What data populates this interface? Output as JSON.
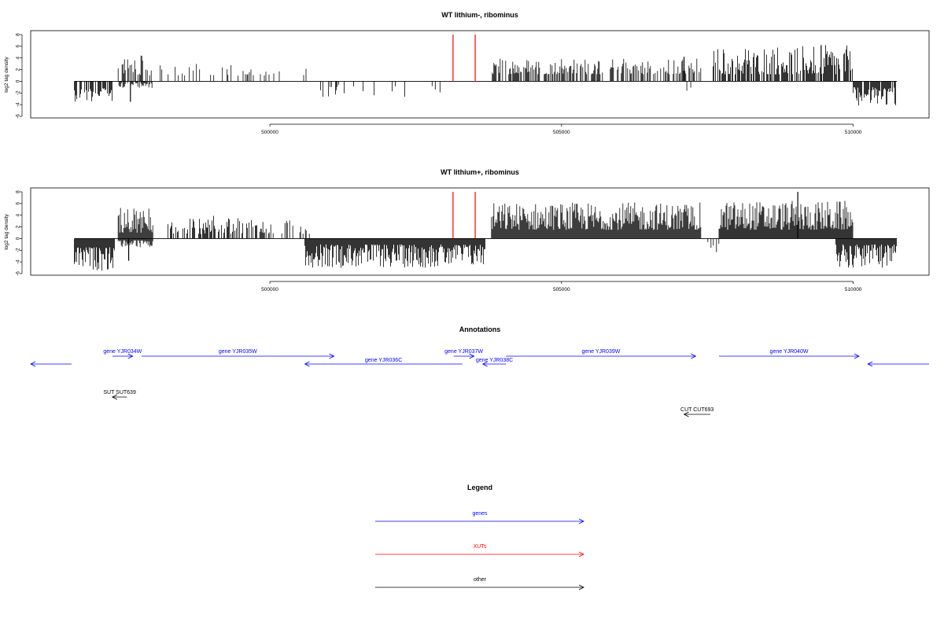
{
  "chart_data": [
    {
      "type": "bar",
      "title": "WT lithium-, ribominus",
      "ylabel": "log2 tag density",
      "ylim": [
        -6,
        8
      ],
      "yticks": [
        -6,
        -4,
        -2,
        0,
        2,
        4,
        6,
        8
      ],
      "xlim": [
        495900,
        511300
      ],
      "xticks": [
        500000,
        505000,
        510000
      ],
      "xtick_labels": [
        "500000",
        "505000",
        "510000"
      ],
      "grid": false,
      "series": [
        {
          "style": "signal",
          "segments": [
            {
              "from": 496650,
              "to": 497300,
              "density": 0.7,
              "pos": [
                0,
                0
              ],
              "neg": [
                1.2,
                3.5
              ]
            },
            {
              "from": 497400,
              "to": 498000,
              "density": 0.6,
              "pos": [
                1,
                4.5
              ],
              "neg": [
                0.3,
                1.2
              ]
            },
            {
              "from": 498000,
              "to": 499500,
              "density": 0.2,
              "pos": [
                1,
                3
              ],
              "neg": [
                0,
                0
              ]
            },
            {
              "from": 499500,
              "to": 500800,
              "density": 0.12,
              "pos": [
                1,
                2.8
              ],
              "neg": [
                0,
                0
              ]
            },
            {
              "from": 500800,
              "to": 502700,
              "density": 0.12,
              "pos": [
                0,
                0
              ],
              "neg": [
                0.5,
                2.8
              ]
            },
            {
              "from": 502700,
              "to": 503200,
              "density": 0.1,
              "pos": [
                0,
                0
              ],
              "neg": [
                0.5,
                3
              ]
            },
            {
              "from": 503800,
              "to": 507400,
              "density": 0.55,
              "pos": [
                1.2,
                4
              ],
              "neg": [
                0,
                0
              ]
            },
            {
              "from": 507000,
              "to": 507400,
              "density": 0.12,
              "pos": [
                0,
                0
              ],
              "neg": [
                0.5,
                3
              ]
            },
            {
              "from": 507600,
              "to": 510000,
              "density": 0.75,
              "pos": [
                1.2,
                6.2
              ],
              "neg": [
                0,
                0
              ]
            },
            {
              "from": 510000,
              "to": 510750,
              "density": 0.85,
              "pos": [
                0,
                0
              ],
              "neg": [
                1,
                4.2
              ]
            }
          ],
          "spikes": [
            {
              "x": 497610,
              "value": -3.5
            },
            {
              "x": 507100,
              "value": 4.2
            },
            {
              "x": 509450,
              "value": 6.2
            }
          ]
        },
        {
          "style": "xut-marker",
          "x": [
            503140,
            503520
          ],
          "value": 8
        }
      ]
    },
    {
      "type": "bar",
      "title": "WT lithium+, ribominus",
      "ylabel": "log2 tag density",
      "ylim": [
        -6,
        8
      ],
      "yticks": [
        -6,
        -4,
        -2,
        0,
        2,
        4,
        6,
        8
      ],
      "xlim": [
        495900,
        511300
      ],
      "xticks": [
        500000,
        505000,
        510000
      ],
      "xtick_labels": [
        "500000",
        "505000",
        "510000"
      ],
      "grid": false,
      "series": [
        {
          "style": "signal",
          "segments": [
            {
              "from": 496650,
              "to": 497350,
              "density": 1.2,
              "pos": [
                0,
                0
              ],
              "neg": [
                1.5,
                5.5
              ]
            },
            {
              "from": 497400,
              "to": 498000,
              "density": 1.2,
              "pos": [
                1,
                5.5
              ],
              "neg": [
                0.3,
                1.5
              ]
            },
            {
              "from": 498200,
              "to": 499800,
              "density": 0.55,
              "pos": [
                0.8,
                4
              ],
              "neg": [
                0,
                0
              ]
            },
            {
              "from": 499800,
              "to": 500700,
              "density": 0.35,
              "pos": [
                0.8,
                3.2
              ],
              "neg": [
                0,
                0
              ]
            },
            {
              "from": 500600,
              "to": 503700,
              "density": 1.5,
              "pos": [
                0,
                0
              ],
              "neg": [
                1,
                5
              ]
            },
            {
              "from": 503800,
              "to": 507400,
              "density": 2.4,
              "pos": [
                1.5,
                6.2
              ],
              "neg": [
                0,
                0
              ]
            },
            {
              "from": 507400,
              "to": 507700,
              "density": 0.2,
              "pos": [
                0,
                0
              ],
              "neg": [
                0.5,
                2.5
              ]
            },
            {
              "from": 507700,
              "to": 510000,
              "density": 2.4,
              "pos": [
                1.5,
                6.5
              ],
              "neg": [
                0,
                0
              ]
            },
            {
              "from": 509700,
              "to": 510750,
              "density": 1.2,
              "pos": [
                0,
                0
              ],
              "neg": [
                1,
                5
              ]
            }
          ],
          "spikes": [
            {
              "x": 497580,
              "value": -3.8
            },
            {
              "x": 509050,
              "value": 8
            }
          ]
        },
        {
          "style": "xut-marker",
          "x": [
            503140,
            503520
          ],
          "value": 8
        }
      ]
    }
  ],
  "annotations": {
    "title": "Annotations",
    "features": [
      {
        "label": "",
        "strand": "-",
        "from": 495900,
        "to": 496600,
        "row": 1,
        "color": "#0000ff"
      },
      {
        "label": "gene YJR034W",
        "strand": "+",
        "from": 497300,
        "to": 497650,
        "row": 0,
        "color": "#0000ff"
      },
      {
        "label": "gene YJR035W",
        "strand": "+",
        "from": 497800,
        "to": 501100,
        "row": 0,
        "color": "#0000ff"
      },
      {
        "label": "gene YJR036C",
        "strand": "-",
        "from": 500600,
        "to": 503300,
        "row": 1,
        "color": "#0000ff"
      },
      {
        "label": "gene YJR037W",
        "strand": "+",
        "from": 503150,
        "to": 503500,
        "row": 0,
        "color": "#0000ff"
      },
      {
        "label": "gene YJR038C",
        "strand": "-",
        "from": 503650,
        "to": 504050,
        "row": 1,
        "color": "#0000ff"
      },
      {
        "label": "gene YJR039W",
        "strand": "+",
        "from": 504050,
        "to": 507300,
        "row": 0,
        "color": "#0000ff"
      },
      {
        "label": "gene YJR040W",
        "strand": "+",
        "from": 507700,
        "to": 510100,
        "row": 0,
        "color": "#0000ff"
      },
      {
        "label": "",
        "strand": "-",
        "from": 510250,
        "to": 511300,
        "row": 1,
        "color": "#0000ff"
      },
      {
        "label": "SUT SUT639",
        "strand": "-",
        "from": 497300,
        "to": 497550,
        "row": 2,
        "color": "#000000"
      },
      {
        "label": "CUT CUT693",
        "strand": "-",
        "from": 507100,
        "to": 507550,
        "row": 3,
        "color": "#000000"
      }
    ]
  },
  "legend": {
    "title": "Legend",
    "items": [
      {
        "label": "genes",
        "color": "#0000ff"
      },
      {
        "label": "XUTs",
        "color": "#ff0000"
      },
      {
        "label": "other",
        "color": "#000000"
      }
    ]
  }
}
